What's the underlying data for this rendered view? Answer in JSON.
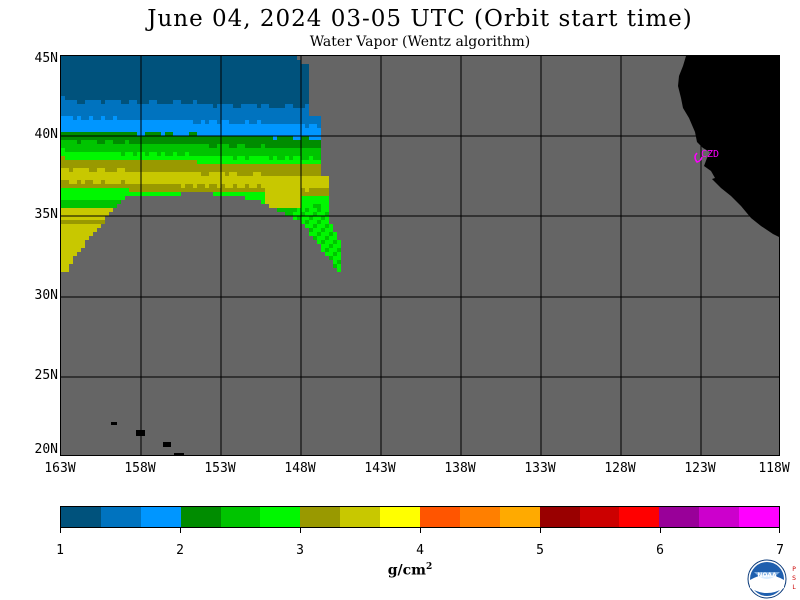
{
  "title": "June 04, 2024  03-05 UTC  (Orbit start time)",
  "subtitle": "Water Vapor (Wentz algorithm)",
  "map": {
    "lat_labels": [
      "45N",
      "40N",
      "35N",
      "30N",
      "25N",
      "20N"
    ],
    "lon_labels": [
      "163W",
      "158W",
      "153W",
      "148W",
      "143W",
      "138W",
      "133W",
      "128W",
      "123W",
      "118W"
    ],
    "station_label": "CZD",
    "colors": {
      "no_data": "#656565",
      "land": "#000000",
      "station": "#ff00ff"
    }
  },
  "colorbar": {
    "tick_labels": [
      "1",
      "2",
      "3",
      "4",
      "5",
      "6",
      "7"
    ],
    "units": "g/cm",
    "units_exp": "2",
    "colors": [
      "#00527c",
      "#0073bf",
      "#0096ff",
      "#008c00",
      "#00c400",
      "#00f700",
      "#999900",
      "#c8c800",
      "#ffff00",
      "#ff5500",
      "#ff7f00",
      "#ffaa00",
      "#990000",
      "#cc0000",
      "#ff0000",
      "#990099",
      "#cc00cc",
      "#ff00ff"
    ]
  },
  "logo": {
    "name": "NOAA",
    "side_text": "PSL"
  }
}
